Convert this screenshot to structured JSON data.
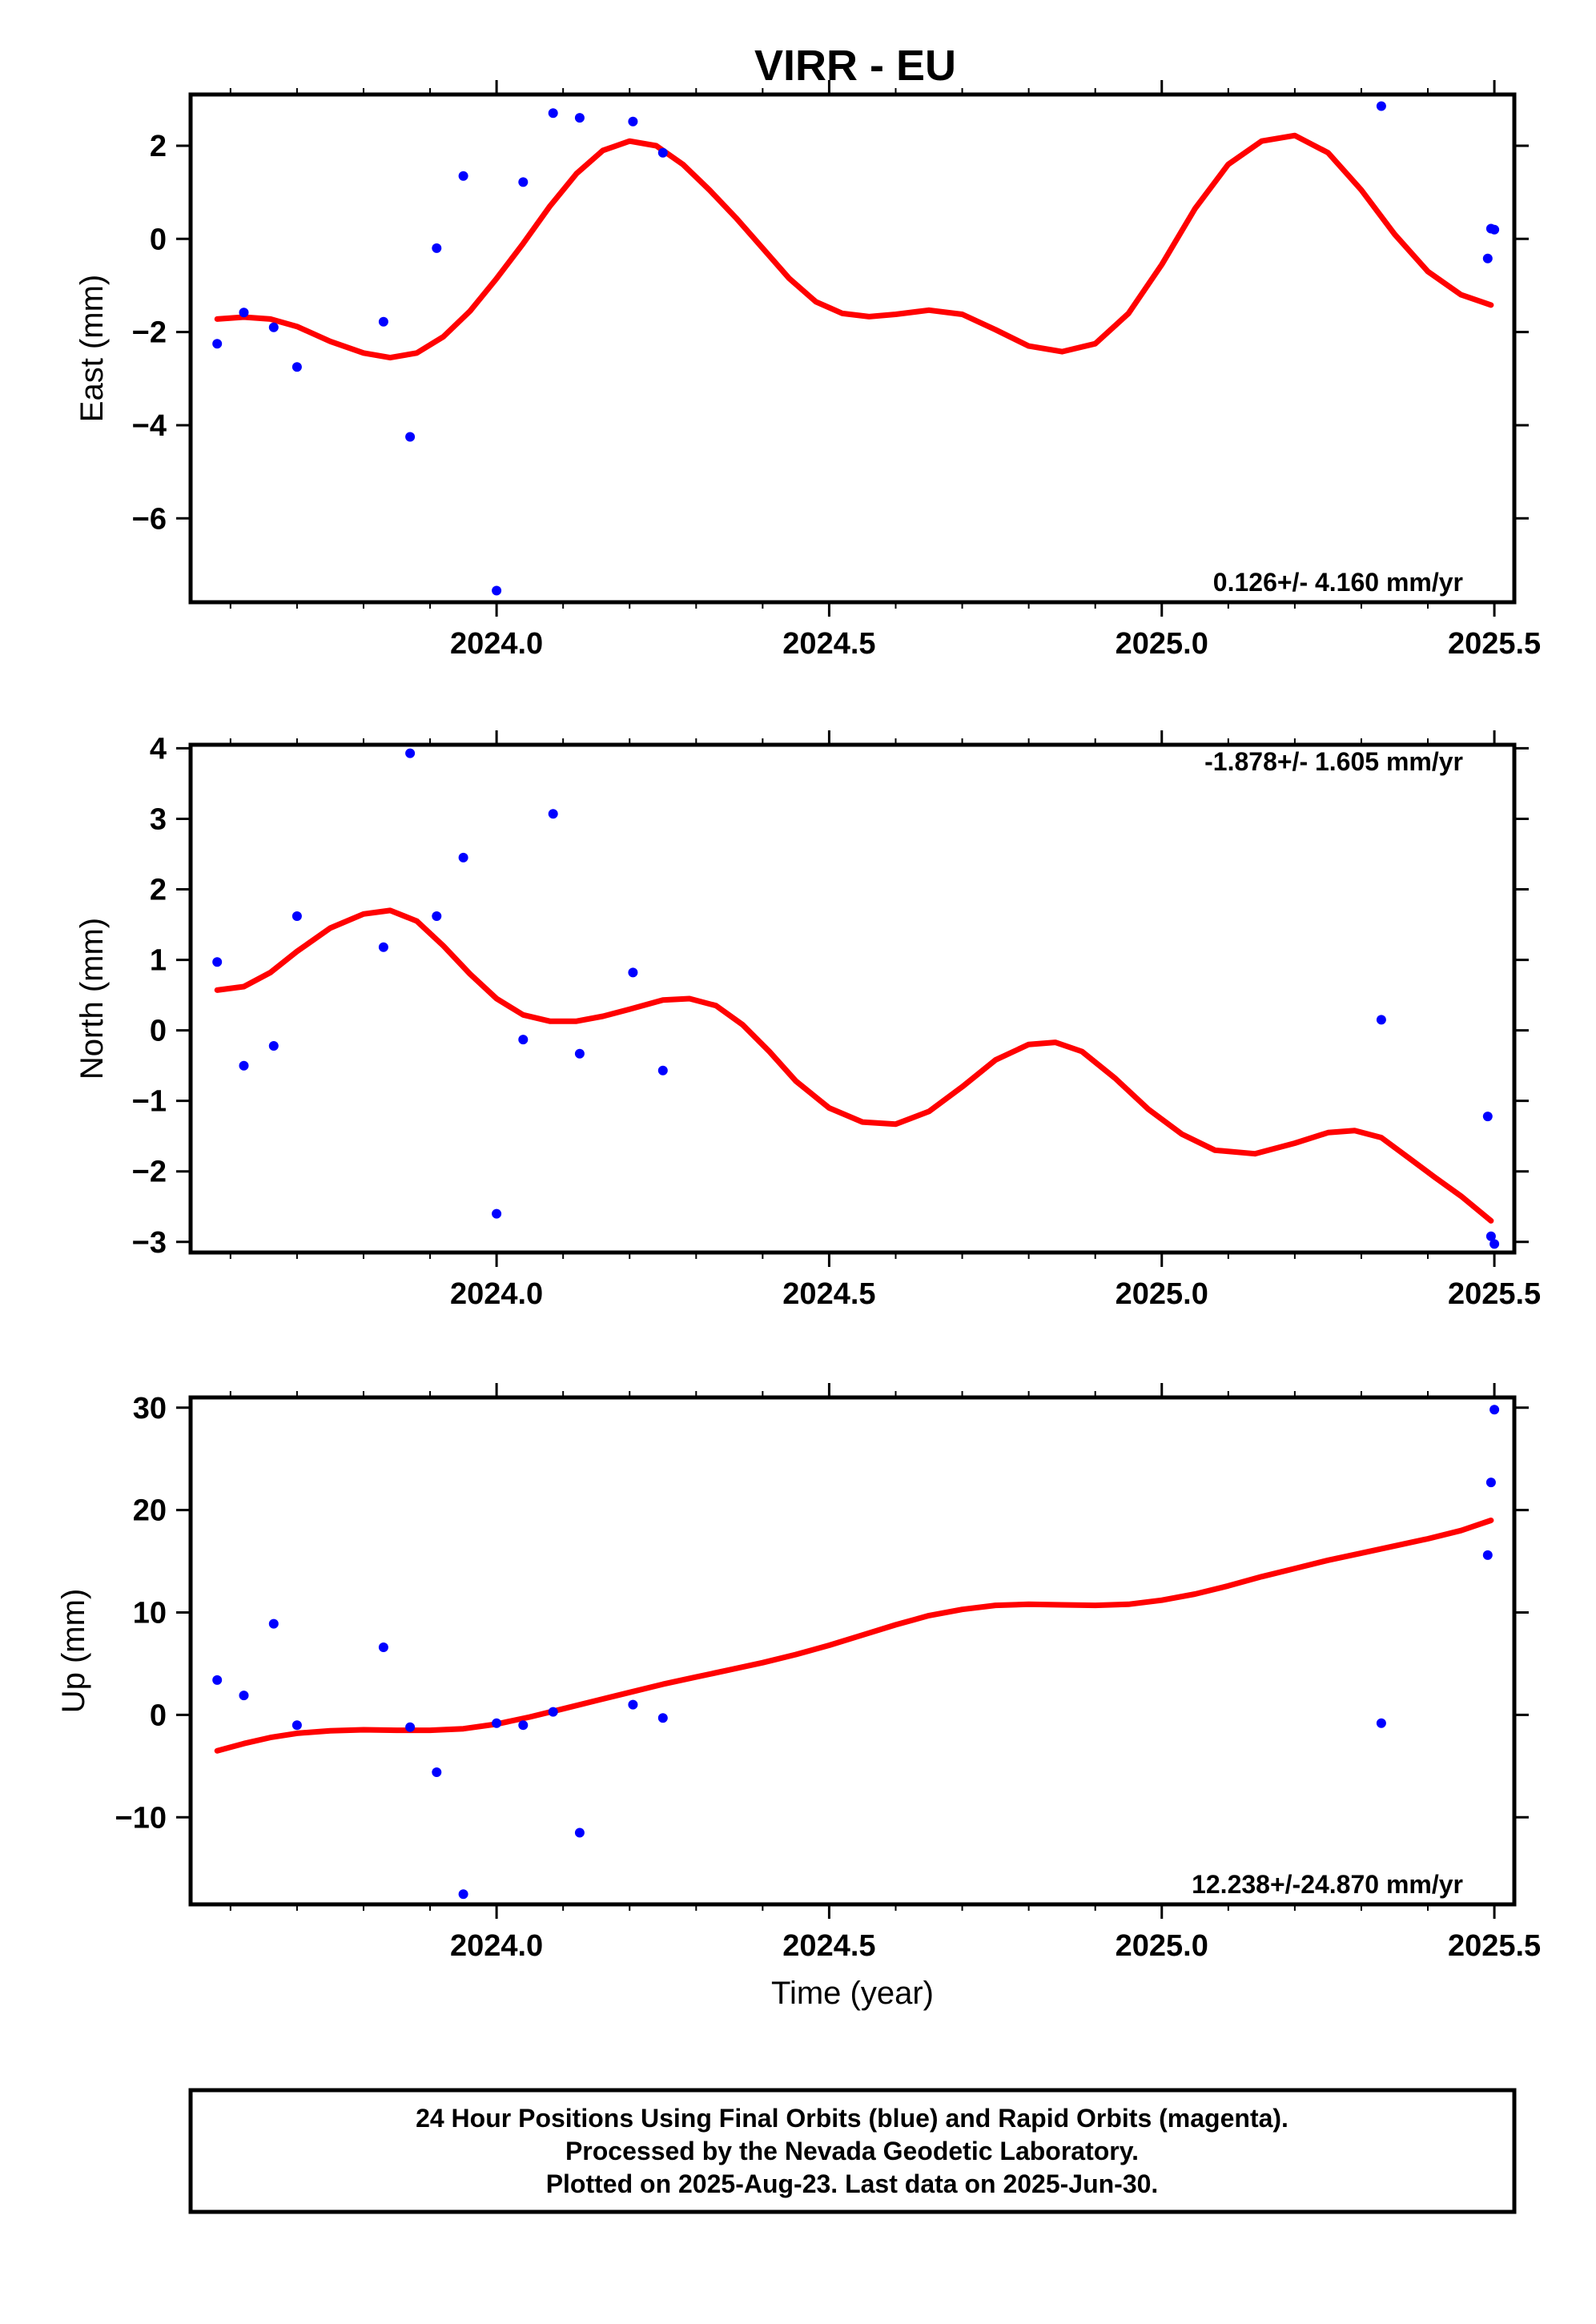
{
  "title": "VIRR - EU",
  "colors": {
    "points": "#0000ff",
    "trend": "#ff0000",
    "frame": "#000000"
  },
  "caption": {
    "lines": [
      "24 Hour Positions Using Final Orbits (blue) and Rapid Orbits (magenta).",
      "Processed by the Nevada Geodetic Laboratory.",
      "Plotted on 2025-Aug-23. Last data on 2025-Jun-30."
    ]
  },
  "chart_data": [
    {
      "type": "scatter",
      "panel": "east",
      "ylabel": "East (mm)",
      "xlabel": "",
      "rate_label": "0.126+/- 4.160 mm/yr",
      "rate_position": "bottom-right",
      "xlim": [
        2023.54,
        2025.53
      ],
      "ylim": [
        -7.8,
        3.1
      ],
      "xticks": [
        2024.0,
        2024.5,
        2025.0,
        2025.5
      ],
      "xtick_labels": [
        "2024.0",
        "2024.5",
        "2025.0",
        "2025.5"
      ],
      "yticks": [
        2,
        0,
        -2,
        -4,
        -6
      ],
      "ytick_labels": [
        "2",
        "0",
        "−2",
        "−4",
        "−6"
      ],
      "points": [
        [
          2023.58,
          -2.25
        ],
        [
          2023.62,
          -1.58
        ],
        [
          2023.665,
          -1.9
        ],
        [
          2023.7,
          -2.75
        ],
        [
          2023.83,
          -1.78
        ],
        [
          2023.87,
          -4.25
        ],
        [
          2023.91,
          -0.2
        ],
        [
          2023.95,
          1.35
        ],
        [
          2024.0,
          -7.55
        ],
        [
          2024.04,
          1.22
        ],
        [
          2024.085,
          2.7
        ],
        [
          2024.125,
          2.6
        ],
        [
          2024.205,
          2.52
        ],
        [
          2024.25,
          1.85
        ],
        [
          2025.33,
          2.85
        ],
        [
          2025.49,
          -0.42
        ],
        [
          2025.495,
          0.22
        ],
        [
          2025.5,
          0.2
        ]
      ],
      "trend": [
        [
          2023.58,
          -1.72
        ],
        [
          2023.62,
          -1.68
        ],
        [
          2023.66,
          -1.72
        ],
        [
          2023.7,
          -1.88
        ],
        [
          2023.75,
          -2.2
        ],
        [
          2023.8,
          -2.45
        ],
        [
          2023.84,
          -2.55
        ],
        [
          2023.88,
          -2.45
        ],
        [
          2023.92,
          -2.1
        ],
        [
          2023.96,
          -1.55
        ],
        [
          2024.0,
          -0.85
        ],
        [
          2024.04,
          -0.1
        ],
        [
          2024.08,
          0.7
        ],
        [
          2024.12,
          1.4
        ],
        [
          2024.16,
          1.9
        ],
        [
          2024.2,
          2.1
        ],
        [
          2024.24,
          2.0
        ],
        [
          2024.28,
          1.6
        ],
        [
          2024.32,
          1.05
        ],
        [
          2024.36,
          0.45
        ],
        [
          2024.4,
          -0.2
        ],
        [
          2024.44,
          -0.85
        ],
        [
          2024.48,
          -1.35
        ],
        [
          2024.52,
          -1.6
        ],
        [
          2024.56,
          -1.67
        ],
        [
          2024.6,
          -1.62
        ],
        [
          2024.65,
          -1.53
        ],
        [
          2024.7,
          -1.62
        ],
        [
          2024.75,
          -1.95
        ],
        [
          2024.8,
          -2.3
        ],
        [
          2024.85,
          -2.42
        ],
        [
          2024.9,
          -2.25
        ],
        [
          2024.95,
          -1.6
        ],
        [
          2025.0,
          -0.55
        ],
        [
          2025.05,
          0.65
        ],
        [
          2025.1,
          1.6
        ],
        [
          2025.15,
          2.1
        ],
        [
          2025.2,
          2.22
        ],
        [
          2025.25,
          1.85
        ],
        [
          2025.3,
          1.05
        ],
        [
          2025.35,
          0.1
        ],
        [
          2025.4,
          -0.7
        ],
        [
          2025.45,
          -1.2
        ],
        [
          2025.495,
          -1.42
        ]
      ]
    },
    {
      "type": "scatter",
      "panel": "north",
      "ylabel": "North (mm)",
      "xlabel": "",
      "rate_label": "-1.878+/- 1.605 mm/yr",
      "rate_position": "top-right",
      "xlim": [
        2023.54,
        2025.53
      ],
      "ylim": [
        -3.15,
        4.05
      ],
      "xticks": [
        2024.0,
        2024.5,
        2025.0,
        2025.5
      ],
      "xtick_labels": [
        "2024.0",
        "2024.5",
        "2025.0",
        "2025.5"
      ],
      "yticks": [
        4,
        3,
        2,
        1,
        0,
        -1,
        -2,
        -3
      ],
      "ytick_labels": [
        "4",
        "3",
        "2",
        "1",
        "0",
        "−1",
        "−2",
        "−3"
      ],
      "points": [
        [
          2023.58,
          0.97
        ],
        [
          2023.62,
          -0.5
        ],
        [
          2023.665,
          -0.22
        ],
        [
          2023.7,
          1.62
        ],
        [
          2023.83,
          1.18
        ],
        [
          2023.87,
          3.93
        ],
        [
          2023.91,
          1.62
        ],
        [
          2023.95,
          2.45
        ],
        [
          2024.0,
          -2.6
        ],
        [
          2024.04,
          -0.13
        ],
        [
          2024.085,
          3.07
        ],
        [
          2024.125,
          -0.33
        ],
        [
          2024.205,
          0.82
        ],
        [
          2024.25,
          -0.57
        ],
        [
          2025.33,
          0.15
        ],
        [
          2025.49,
          -1.22
        ],
        [
          2025.495,
          -2.92
        ],
        [
          2025.5,
          -3.03
        ]
      ],
      "trend": [
        [
          2023.58,
          0.57
        ],
        [
          2023.62,
          0.62
        ],
        [
          2023.66,
          0.82
        ],
        [
          2023.7,
          1.12
        ],
        [
          2023.75,
          1.45
        ],
        [
          2023.8,
          1.65
        ],
        [
          2023.84,
          1.7
        ],
        [
          2023.88,
          1.55
        ],
        [
          2023.92,
          1.2
        ],
        [
          2023.96,
          0.8
        ],
        [
          2024.0,
          0.45
        ],
        [
          2024.04,
          0.22
        ],
        [
          2024.08,
          0.13
        ],
        [
          2024.12,
          0.13
        ],
        [
          2024.16,
          0.2
        ],
        [
          2024.2,
          0.3
        ],
        [
          2024.25,
          0.43
        ],
        [
          2024.29,
          0.45
        ],
        [
          2024.33,
          0.35
        ],
        [
          2024.37,
          0.08
        ],
        [
          2024.41,
          -0.3
        ],
        [
          2024.45,
          -0.72
        ],
        [
          2024.5,
          -1.1
        ],
        [
          2024.55,
          -1.3
        ],
        [
          2024.6,
          -1.33
        ],
        [
          2024.65,
          -1.15
        ],
        [
          2024.7,
          -0.8
        ],
        [
          2024.75,
          -0.42
        ],
        [
          2024.8,
          -0.2
        ],
        [
          2024.84,
          -0.17
        ],
        [
          2024.88,
          -0.3
        ],
        [
          2024.93,
          -0.68
        ],
        [
          2024.98,
          -1.12
        ],
        [
          2025.03,
          -1.47
        ],
        [
          2025.08,
          -1.7
        ],
        [
          2025.14,
          -1.75
        ],
        [
          2025.2,
          -1.6
        ],
        [
          2025.25,
          -1.45
        ],
        [
          2025.29,
          -1.42
        ],
        [
          2025.33,
          -1.52
        ],
        [
          2025.37,
          -1.8
        ],
        [
          2025.41,
          -2.08
        ],
        [
          2025.45,
          -2.35
        ],
        [
          2025.495,
          -2.7
        ]
      ]
    },
    {
      "type": "scatter",
      "panel": "up",
      "ylabel": "Up (mm)",
      "xlabel": "Time (year)",
      "rate_label": "12.238+/-24.870 mm/yr",
      "rate_position": "bottom-right",
      "xlim": [
        2023.54,
        2025.53
      ],
      "ylim": [
        -18.5,
        31.0
      ],
      "xticks": [
        2024.0,
        2024.5,
        2025.0,
        2025.5
      ],
      "xtick_labels": [
        "2024.0",
        "2024.5",
        "2025.0",
        "2025.5"
      ],
      "yticks": [
        30,
        20,
        10,
        0,
        -10
      ],
      "ytick_labels": [
        "30",
        "20",
        "10",
        "0",
        "−10"
      ],
      "points": [
        [
          2023.58,
          3.4
        ],
        [
          2023.62,
          1.9
        ],
        [
          2023.665,
          8.9
        ],
        [
          2023.7,
          -1.0
        ],
        [
          2023.83,
          6.6
        ],
        [
          2023.87,
          -1.2
        ],
        [
          2023.91,
          -5.6
        ],
        [
          2023.95,
          -17.5
        ],
        [
          2024.0,
          -0.8
        ],
        [
          2024.04,
          -1.0
        ],
        [
          2024.085,
          0.3
        ],
        [
          2024.125,
          -11.5
        ],
        [
          2024.205,
          1.0
        ],
        [
          2024.25,
          -0.3
        ],
        [
          2025.33,
          -0.8
        ],
        [
          2025.49,
          15.6
        ],
        [
          2025.495,
          22.7
        ],
        [
          2025.5,
          29.8
        ]
      ],
      "trend": [
        [
          2023.58,
          -3.5
        ],
        [
          2023.62,
          -2.8
        ],
        [
          2023.66,
          -2.2
        ],
        [
          2023.7,
          -1.8
        ],
        [
          2023.75,
          -1.55
        ],
        [
          2023.8,
          -1.45
        ],
        [
          2023.85,
          -1.5
        ],
        [
          2023.9,
          -1.5
        ],
        [
          2023.95,
          -1.35
        ],
        [
          2024.0,
          -0.9
        ],
        [
          2024.05,
          -0.2
        ],
        [
          2024.1,
          0.6
        ],
        [
          2024.15,
          1.4
        ],
        [
          2024.2,
          2.2
        ],
        [
          2024.25,
          3.0
        ],
        [
          2024.3,
          3.7
        ],
        [
          2024.35,
          4.4
        ],
        [
          2024.4,
          5.1
        ],
        [
          2024.45,
          5.9
        ],
        [
          2024.5,
          6.8
        ],
        [
          2024.55,
          7.8
        ],
        [
          2024.6,
          8.8
        ],
        [
          2024.65,
          9.7
        ],
        [
          2024.7,
          10.3
        ],
        [
          2024.75,
          10.7
        ],
        [
          2024.8,
          10.8
        ],
        [
          2024.85,
          10.75
        ],
        [
          2024.9,
          10.7
        ],
        [
          2024.95,
          10.8
        ],
        [
          2025.0,
          11.2
        ],
        [
          2025.05,
          11.8
        ],
        [
          2025.1,
          12.6
        ],
        [
          2025.15,
          13.5
        ],
        [
          2025.2,
          14.3
        ],
        [
          2025.25,
          15.1
        ],
        [
          2025.3,
          15.8
        ],
        [
          2025.35,
          16.5
        ],
        [
          2025.4,
          17.2
        ],
        [
          2025.45,
          18.0
        ],
        [
          2025.495,
          19.0
        ]
      ]
    }
  ]
}
